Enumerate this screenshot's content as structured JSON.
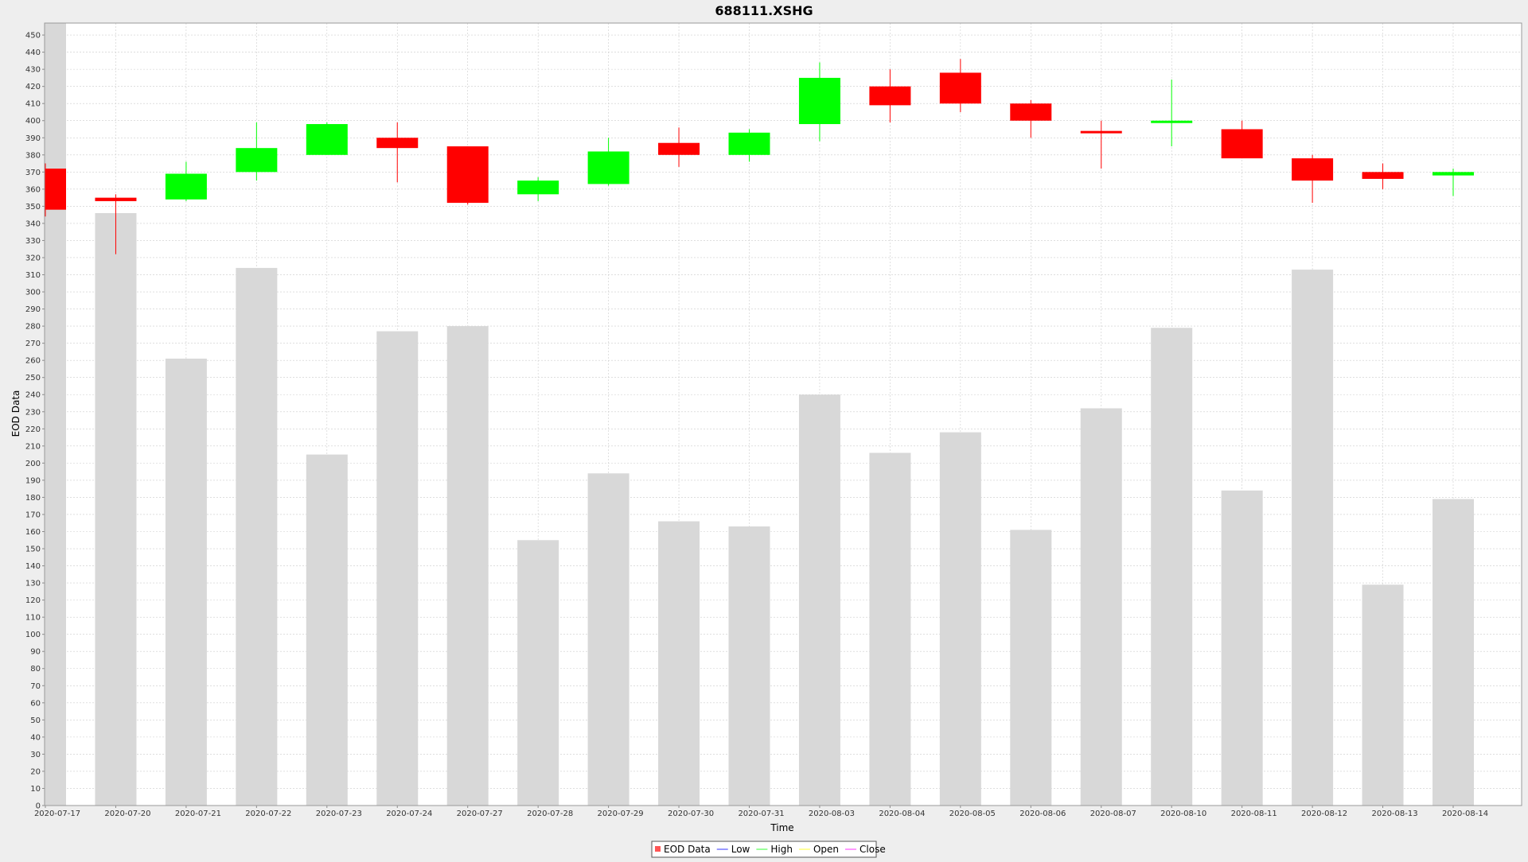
{
  "chart_data": {
    "type": "candlestick",
    "title": "688111.XSHG",
    "xlabel": "Time",
    "ylabel": "EOD Data",
    "ylim": [
      0,
      457
    ],
    "y_tick_step": 10,
    "grid": true,
    "legend_position": "bottom-center",
    "legend": [
      {
        "label": "EOD Data",
        "color": "#ff5555",
        "kind": "box"
      },
      {
        "label": "Low",
        "color": "#5555ff",
        "kind": "line"
      },
      {
        "label": "High",
        "color": "#55ff55",
        "kind": "line"
      },
      {
        "label": "Open",
        "color": "#ffff55",
        "kind": "line"
      },
      {
        "label": "Close",
        "color": "#ff55ff",
        "kind": "line"
      }
    ],
    "colors": {
      "up": "#00ff00",
      "down": "#ff0000",
      "volume": "#d8d8d8",
      "plot_bg": "#ffffff",
      "page_bg": "#eeeeee",
      "grid": "#cccccc"
    },
    "tick_labels": [
      "2020-07-17",
      "2020-07-20",
      "2020-07-21",
      "2020-07-22",
      "2020-07-23",
      "2020-07-24",
      "2020-07-27",
      "2020-07-28",
      "2020-07-29",
      "2020-07-30",
      "2020-07-31",
      "2020-08-03",
      "2020-08-04",
      "2020-08-05",
      "2020-08-06",
      "2020-08-07",
      "2020-08-10",
      "2020-08-11",
      "2020-08-12",
      "2020-08-13",
      "2020-08-14"
    ],
    "candles": [
      {
        "date": "2020-07-17",
        "open": 372,
        "high": 375,
        "low": 344,
        "close": 348,
        "volume": 457
      },
      {
        "date": "2020-07-20",
        "open": 355,
        "high": 357,
        "low": 322,
        "close": 353,
        "volume": 346
      },
      {
        "date": "2020-07-21",
        "open": 354,
        "high": 376,
        "low": 353,
        "close": 369,
        "volume": 261
      },
      {
        "date": "2020-07-22",
        "open": 370,
        "high": 399,
        "low": 365,
        "close": 384,
        "volume": 314
      },
      {
        "date": "2020-07-23",
        "open": 380,
        "high": 399,
        "low": 380,
        "close": 398,
        "volume": 205
      },
      {
        "date": "2020-07-24",
        "open": 390,
        "high": 399,
        "low": 364,
        "close": 384,
        "volume": 277
      },
      {
        "date": "2020-07-27",
        "open": 385,
        "high": 385,
        "low": 351,
        "close": 352,
        "volume": 280
      },
      {
        "date": "2020-07-28",
        "open": 357,
        "high": 367,
        "low": 353,
        "close": 365,
        "volume": 155
      },
      {
        "date": "2020-07-29",
        "open": 363,
        "high": 390,
        "low": 362,
        "close": 382,
        "volume": 194
      },
      {
        "date": "2020-07-30",
        "open": 387,
        "high": 396,
        "low": 373,
        "close": 380,
        "volume": 166
      },
      {
        "date": "2020-07-31",
        "open": 380,
        "high": 395,
        "low": 376,
        "close": 393,
        "volume": 163
      },
      {
        "date": "2020-08-03",
        "open": 398,
        "high": 434,
        "low": 388,
        "close": 425,
        "volume": 240
      },
      {
        "date": "2020-08-04",
        "open": 420,
        "high": 430,
        "low": 399,
        "close": 409,
        "volume": 206
      },
      {
        "date": "2020-08-05",
        "open": 428,
        "high": 436,
        "low": 405,
        "close": 410,
        "volume": 218
      },
      {
        "date": "2020-08-06",
        "open": 410,
        "high": 412,
        "low": 390,
        "close": 400,
        "volume": 161
      },
      {
        "date": "2020-08-07",
        "open": 394,
        "high": 400,
        "low": 372,
        "close": 393,
        "volume": 232
      },
      {
        "date": "2020-08-10",
        "open": 399,
        "high": 424,
        "low": 385,
        "close": 400,
        "volume": 279
      },
      {
        "date": "2020-08-11",
        "open": 395,
        "high": 400,
        "low": 378,
        "close": 378,
        "volume": 184
      },
      {
        "date": "2020-08-12",
        "open": 378,
        "high": 380,
        "low": 352,
        "close": 365,
        "volume": 313
      },
      {
        "date": "2020-08-13",
        "open": 370,
        "high": 375,
        "low": 360,
        "close": 366,
        "volume": 129
      },
      {
        "date": "2020-08-14",
        "open": 368,
        "high": 372,
        "low": 356,
        "close": 370,
        "volume": 179
      }
    ]
  }
}
